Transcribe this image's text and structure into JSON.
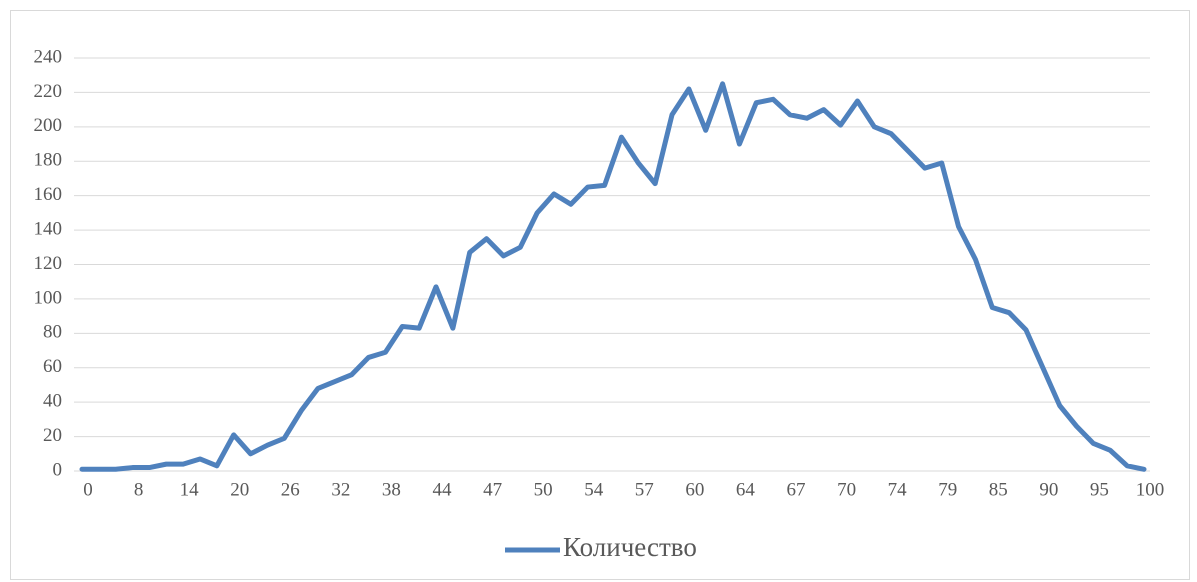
{
  "chart_data": {
    "type": "line",
    "categories": [
      "0",
      null,
      null,
      "8",
      null,
      null,
      "14",
      null,
      null,
      "20",
      null,
      null,
      "26",
      null,
      null,
      "32",
      null,
      null,
      "38",
      null,
      null,
      "44",
      null,
      null,
      "47",
      null,
      null,
      "50",
      null,
      null,
      "54",
      null,
      null,
      "57",
      null,
      null,
      "60",
      null,
      null,
      "64",
      null,
      null,
      "67",
      null,
      null,
      "70",
      null,
      null,
      "74",
      null,
      null,
      "79",
      null,
      null,
      "85",
      null,
      null,
      "90",
      null,
      null,
      "95",
      null,
      null,
      "100"
    ],
    "series": [
      {
        "name": "Количество",
        "color": "#4f81bd",
        "values": [
          1,
          1,
          1,
          2,
          2,
          4,
          4,
          7,
          3,
          21,
          10,
          15,
          19,
          35,
          48,
          52,
          56,
          66,
          69,
          84,
          83,
          107,
          83,
          127,
          135,
          125,
          130,
          150,
          161,
          155,
          165,
          166,
          194,
          179,
          167,
          207,
          222,
          198,
          225,
          190,
          214,
          216,
          207,
          205,
          210,
          201,
          215,
          200,
          196,
          186,
          176,
          179,
          142,
          123,
          95,
          92,
          82,
          60,
          38,
          26,
          16,
          12,
          3,
          1
        ]
      }
    ],
    "ylim": [
      0,
      240
    ],
    "yticks": [
      0,
      20,
      40,
      60,
      80,
      100,
      120,
      140,
      160,
      180,
      200,
      220,
      240
    ],
    "grid": true,
    "legend": "bottom"
  }
}
